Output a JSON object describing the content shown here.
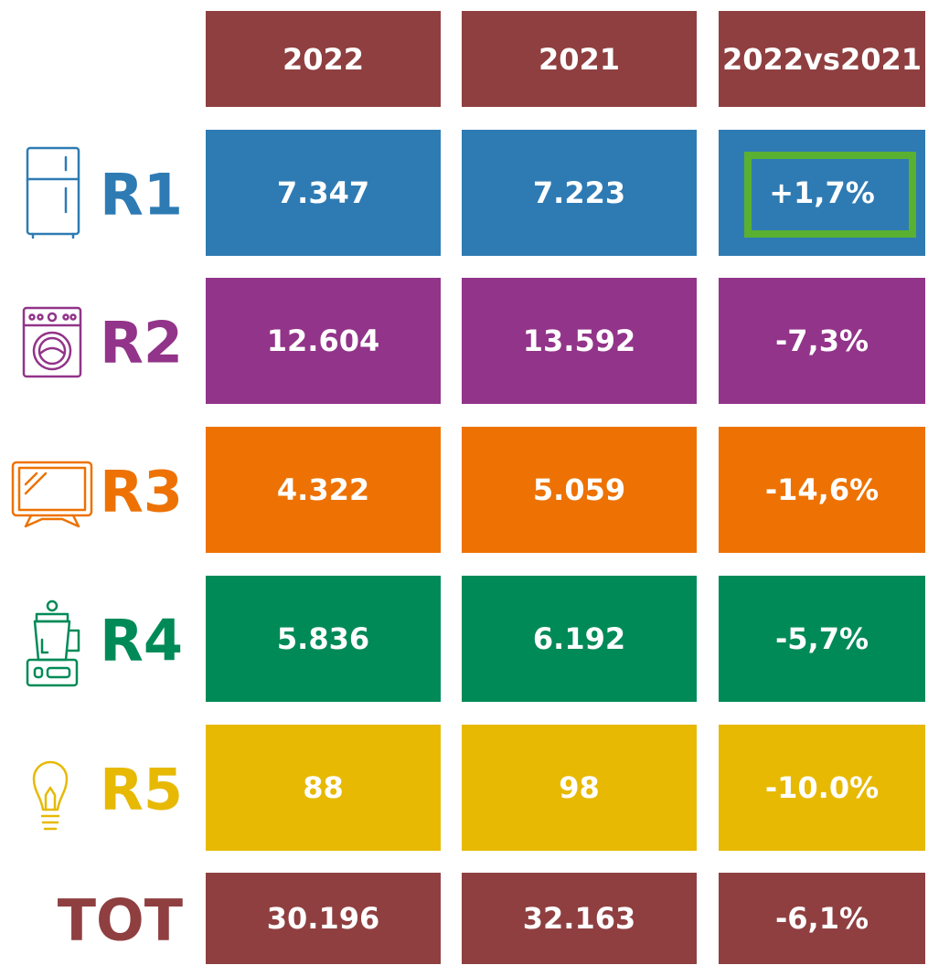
{
  "table": {
    "header_color": "#8f3f40",
    "columns": [
      "2022",
      "2021",
      "2022vs2021"
    ],
    "rows": [
      {
        "label": "R1",
        "color": "#2e7bb4",
        "cells": [
          "7.347",
          "7.223",
          "+1,7%"
        ]
      },
      {
        "label": "R2",
        "color": "#923489",
        "cells": [
          "12.604",
          "13.592",
          "-7,3%"
        ]
      },
      {
        "label": "R3",
        "color": "#ed7203",
        "cells": [
          "4.322",
          "5.059",
          "-14,6%"
        ]
      },
      {
        "label": "R4",
        "color": "#008a57",
        "cells": [
          "5.836",
          "6.192",
          "-5,7%"
        ]
      },
      {
        "label": "R5",
        "color": "#e7b903",
        "cells": [
          "88",
          "98",
          "-10.0%"
        ]
      },
      {
        "label": "TOT",
        "color": "#8f3f40",
        "cells": [
          "30.196",
          "32.163",
          "-6,1%"
        ]
      }
    ]
  }
}
